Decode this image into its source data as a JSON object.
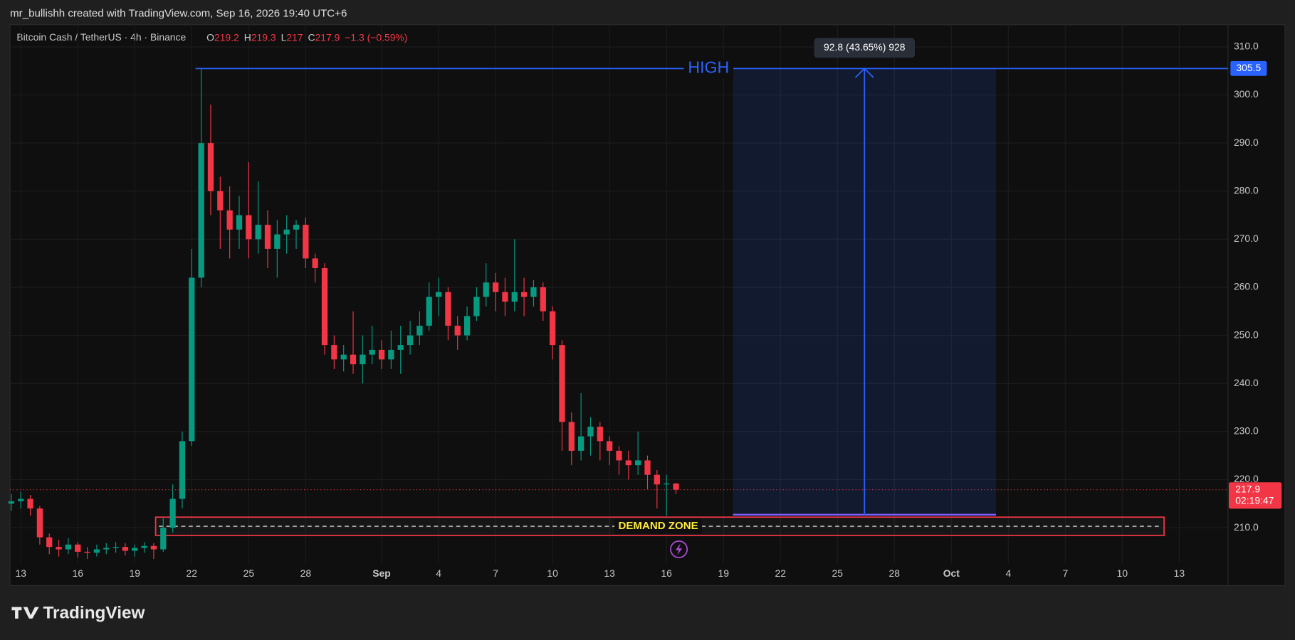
{
  "header": "mr_bullishh created with TradingView.com, Sep 16, 2026 19:40 UTC+6",
  "brand": "TradingView",
  "chart_data": {
    "type": "candlestick",
    "symbol": "Bitcoin Cash / TetherUS · 4h · Binance",
    "legend_keys": [
      "O",
      "H",
      "L",
      "C"
    ],
    "change_label": "−1.3 (−0.59%)",
    "countdown": "02:19:47",
    "up_color": "#089981",
    "down_color": "#f23645",
    "grid": true,
    "xlim": [
      -0.565,
      63.565
    ],
    "xticks": [
      {
        "value": 0,
        "label": "13"
      },
      {
        "value": 3,
        "label": "16"
      },
      {
        "value": 6,
        "label": "19"
      },
      {
        "value": 9,
        "label": "22"
      },
      {
        "value": 12,
        "label": "25"
      },
      {
        "value": 15,
        "label": "28"
      },
      {
        "value": 19,
        "label": "Sep"
      },
      {
        "value": 22,
        "label": "4"
      },
      {
        "value": 25,
        "label": "7"
      },
      {
        "value": 28,
        "label": "10"
      },
      {
        "value": 31,
        "label": "13"
      },
      {
        "value": 34,
        "label": "16"
      },
      {
        "value": 37,
        "label": "19"
      },
      {
        "value": 40,
        "label": "22"
      },
      {
        "value": 43,
        "label": "25"
      },
      {
        "value": 46,
        "label": "28"
      },
      {
        "value": 49,
        "label": "Oct"
      },
      {
        "value": 52,
        "label": "4"
      },
      {
        "value": 55,
        "label": "7"
      },
      {
        "value": 58,
        "label": "10"
      },
      {
        "value": 61,
        "label": "13"
      }
    ],
    "ylim": [
      202.6,
      314.6
    ],
    "yticks": [
      {
        "value": 210,
        "label": "210.0"
      },
      {
        "value": 220,
        "label": "220.0"
      },
      {
        "value": 230,
        "label": "230.0"
      },
      {
        "value": 240,
        "label": "240.0"
      },
      {
        "value": 250,
        "label": "250.0"
      },
      {
        "value": 260,
        "label": "260.0"
      },
      {
        "value": 270,
        "label": "270.0"
      },
      {
        "value": 280,
        "label": "280.0"
      },
      {
        "value": 290,
        "label": "290.0"
      },
      {
        "value": 300,
        "label": "300.0"
      },
      {
        "value": 310,
        "label": "310.0"
      }
    ],
    "series": [
      {
        "name": "Bitcoin Cash / TetherUS",
        "x": [
          -0.5,
          0,
          0.5,
          1,
          1.5,
          2,
          2.5,
          3,
          3.5,
          4,
          4.5,
          5,
          5.5,
          6,
          6.5,
          7,
          7.5,
          8,
          8.5,
          9,
          9.5,
          10,
          10.5,
          11,
          11.5,
          12,
          12.5,
          13,
          13.5,
          14,
          14.5,
          15,
          15.5,
          16,
          16.5,
          17,
          17.5,
          18,
          18.5,
          19,
          19.5,
          20,
          20.5,
          21,
          21.5,
          22,
          22.5,
          23,
          23.5,
          24,
          24.5,
          25,
          25.5,
          26,
          26.5,
          27,
          27.5,
          28,
          28.5,
          29,
          29.5,
          30,
          30.5,
          31,
          31.5,
          32,
          32.5,
          33,
          33.5,
          34,
          34.5
        ],
        "open": [
          215.0,
          215.5,
          216.0,
          214.0,
          208.0,
          206.0,
          205.5,
          206.5,
          205.0,
          204.8,
          205.5,
          205.8,
          206.0,
          205.2,
          205.8,
          206.2,
          205.5,
          210.0,
          216.0,
          228.0,
          262.0,
          290.0,
          280.0,
          276.0,
          272.0,
          275.0,
          270.0,
          273.0,
          268.0,
          271.0,
          272.0,
          273.0,
          266.0,
          264.0,
          248.0,
          245.0,
          246.0,
          244.0,
          246.0,
          247.0,
          245.0,
          247.0,
          248.0,
          250.0,
          252.0,
          258.0,
          259.0,
          252.0,
          250.0,
          254.0,
          258.0,
          261.0,
          259.0,
          257.0,
          259.0,
          258.0,
          260.0,
          255.0,
          248.0,
          232.0,
          226.0,
          229.0,
          231.0,
          228.0,
          226.0,
          224.0,
          223.0,
          224.0,
          221.0,
          219.0,
          219.2
        ],
        "high": [
          217.0,
          217.5,
          216.8,
          214.5,
          208.8,
          207.5,
          207.8,
          207.0,
          206.0,
          206.5,
          206.8,
          207.0,
          206.8,
          206.5,
          207.0,
          206.8,
          212.0,
          219.0,
          230.0,
          268.0,
          305.5,
          298.0,
          283.0,
          281.0,
          279.0,
          286.0,
          282.0,
          276.0,
          274.0,
          275.0,
          274.0,
          274.5,
          267.0,
          265.0,
          250.0,
          248.0,
          255.0,
          250.0,
          252.0,
          249.0,
          251.0,
          252.0,
          253.0,
          255.0,
          261.0,
          262.0,
          260.0,
          254.0,
          256.0,
          260.0,
          265.0,
          263.0,
          262.0,
          270.0,
          262.0,
          261.5,
          261.0,
          256.0,
          249.0,
          234.0,
          238.0,
          233.0,
          232.0,
          229.0,
          227.0,
          226.0,
          230.0,
          225.0,
          222.0,
          221.0,
          219.3
        ],
        "low": [
          213.5,
          214.0,
          212.5,
          206.5,
          204.5,
          204.0,
          204.5,
          203.8,
          203.5,
          204.0,
          204.5,
          204.8,
          204.2,
          204.0,
          204.8,
          203.5,
          205.0,
          209.0,
          214.0,
          227.0,
          260.0,
          275.0,
          268.0,
          266.0,
          268.0,
          266.0,
          267.0,
          264.0,
          262.0,
          267.0,
          268.0,
          264.0,
          261.0,
          246.0,
          243.0,
          242.5,
          242.0,
          240.0,
          244.0,
          243.0,
          243.0,
          242.0,
          246.0,
          248.0,
          251.0,
          254.0,
          249.0,
          247.0,
          249.0,
          253.0,
          256.0,
          255.0,
          254.0,
          255.0,
          254.0,
          256.0,
          253.0,
          245.0,
          226.0,
          223.0,
          224.0,
          225.0,
          224.0,
          223.0,
          221.0,
          220.0,
          221.0,
          218.0,
          214.0,
          212.5,
          217.0
        ],
        "close": [
          215.5,
          216.0,
          214.0,
          208.0,
          206.0,
          205.5,
          206.5,
          205.0,
          204.8,
          205.5,
          205.8,
          206.0,
          205.2,
          205.8,
          206.2,
          205.5,
          210.0,
          216.0,
          228.0,
          262.0,
          290.0,
          280.0,
          276.0,
          272.0,
          275.0,
          270.0,
          273.0,
          268.0,
          271.0,
          272.0,
          273.0,
          266.0,
          264.0,
          248.0,
          245.0,
          246.0,
          244.0,
          246.0,
          247.0,
          245.0,
          247.0,
          248.0,
          250.0,
          252.0,
          258.0,
          259.0,
          252.0,
          250.0,
          254.0,
          258.0,
          261.0,
          259.0,
          257.0,
          259.0,
          258.0,
          260.0,
          255.0,
          248.0,
          232.0,
          226.0,
          229.0,
          231.0,
          228.0,
          226.0,
          224.0,
          223.0,
          224.0,
          221.0,
          219.0,
          219.2,
          217.9
        ]
      }
    ],
    "high_line": {
      "label": "HIGH",
      "value": 305.5,
      "x_start": 9.2,
      "color": "#2962ff"
    },
    "measure": {
      "label": "92.8 (43.65%) 928",
      "from": 212.7,
      "to": 305.5,
      "x_start": 37.5,
      "x_end": 51.35,
      "color": "#2962ff"
    },
    "demand_zone": {
      "label": "DEMAND ZONE",
      "top": 212.2,
      "bottom": 208.4,
      "x_start": 7.1,
      "x_end": 60.2,
      "color": "#f23645"
    }
  }
}
